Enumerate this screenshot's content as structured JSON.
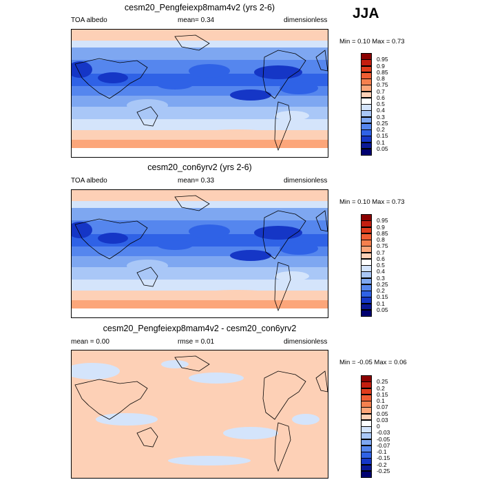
{
  "season": "JJA",
  "panels": [
    {
      "title": "cesm20_Pengfeiexp8mam4v2 (yrs 2-6)",
      "left_label": "TOA albedo",
      "center_label": "mean=   0.34",
      "right_label": "dimensionless",
      "minmax": "Min =   0.10 Max =   0.73",
      "kind": "abs"
    },
    {
      "title": "cesm20_con6yrv2 (yrs 2-6)",
      "left_label": "TOA albedo",
      "center_label": "mean=   0.33",
      "right_label": "dimensionless",
      "minmax": "Min =   0.10 Max =   0.73",
      "kind": "abs"
    },
    {
      "title": "cesm20_Pengfeiexp8mam4v2 - cesm20_con6yrv2",
      "left_label": "mean =   0.00",
      "center_label": "rmse =   0.01",
      "right_label": "dimensionless",
      "minmax": "Min =  -0.05 Max =   0.06",
      "kind": "diff"
    }
  ],
  "chart_data": [
    {
      "type": "heatmap",
      "title": "cesm20_Pengfeiexp8mam4v2 (yrs 2-6)",
      "variable": "TOA albedo",
      "units": "dimensionless",
      "mean": 0.34,
      "min": 0.1,
      "max": 0.73,
      "colorbar_levels": [
        "0.95",
        "0.9",
        "0.85",
        "0.8",
        "0.75",
        "0.7",
        "0.6",
        "0.5",
        "0.4",
        "0.3",
        "0.25",
        "0.2",
        "0.15",
        "0.1",
        "0.05"
      ],
      "colorbar_colors": [
        "#8b0000",
        "#c41e0f",
        "#e03c1c",
        "#f05d33",
        "#f5804e",
        "#fca67a",
        "#fdd0b6",
        "#ffffff",
        "#d4e4fb",
        "#a9c7f7",
        "#7ea7f1",
        "#5586ee",
        "#2f62e6",
        "#1536c6",
        "#0a1896",
        "#000070"
      ]
    },
    {
      "type": "heatmap",
      "title": "cesm20_con6yrv2 (yrs 2-6)",
      "variable": "TOA albedo",
      "units": "dimensionless",
      "mean": 0.33,
      "min": 0.1,
      "max": 0.73,
      "colorbar_levels": [
        "0.95",
        "0.9",
        "0.85",
        "0.8",
        "0.75",
        "0.7",
        "0.6",
        "0.5",
        "0.4",
        "0.3",
        "0.25",
        "0.2",
        "0.15",
        "0.1",
        "0.05"
      ],
      "colorbar_colors": [
        "#8b0000",
        "#c41e0f",
        "#e03c1c",
        "#f05d33",
        "#f5804e",
        "#fca67a",
        "#fdd0b6",
        "#ffffff",
        "#d4e4fb",
        "#a9c7f7",
        "#7ea7f1",
        "#5586ee",
        "#2f62e6",
        "#1536c6",
        "#0a1896",
        "#000070"
      ]
    },
    {
      "type": "heatmap",
      "title": "cesm20_Pengfeiexp8mam4v2 - cesm20_con6yrv2",
      "units": "dimensionless",
      "mean": 0.0,
      "rmse": 0.01,
      "min": -0.05,
      "max": 0.06,
      "colorbar_levels": [
        "0.25",
        "0.2",
        "0.15",
        "0.1",
        "0.07",
        "0.05",
        "0.03",
        "0",
        "-0.03",
        "-0.05",
        "-0.07",
        "-0.1",
        "-0.15",
        "-0.2",
        "-0.25"
      ],
      "colorbar_colors": [
        "#8b0000",
        "#c41e0f",
        "#e03c1c",
        "#f05d33",
        "#f5804e",
        "#fca67a",
        "#fdd0b6",
        "#ffffff",
        "#d4e4fb",
        "#a9c7f7",
        "#7ea7f1",
        "#5586ee",
        "#2f62e6",
        "#1536c6",
        "#0a1896",
        "#000070"
      ]
    }
  ]
}
